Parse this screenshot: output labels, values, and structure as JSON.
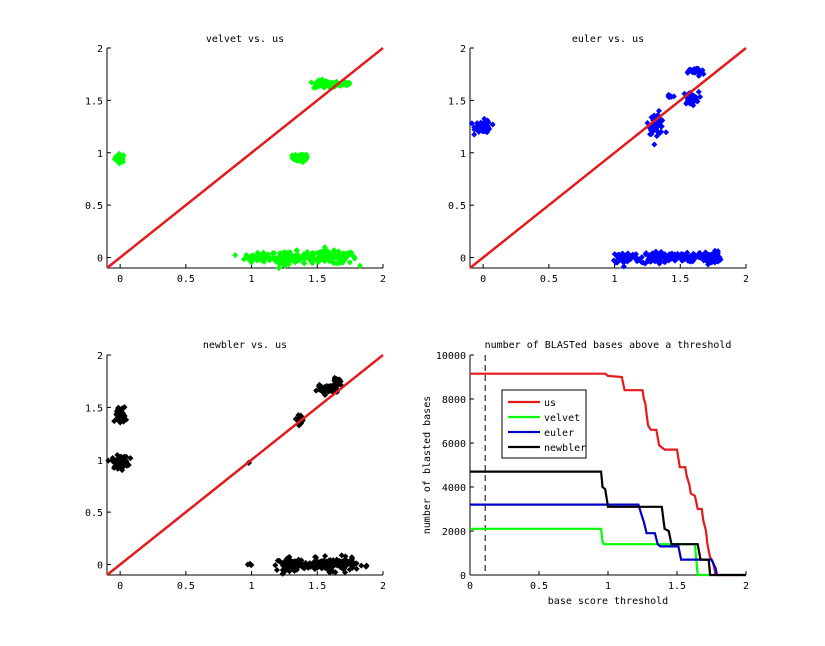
{
  "chart_data": [
    {
      "type": "scatter",
      "title": "velvet vs. us",
      "xlabel": "",
      "ylabel": "",
      "xlim": [
        -0.1,
        2
      ],
      "ylim": [
        -0.1,
        2
      ],
      "xticks": [
        "0",
        "0.5",
        "1",
        "1.5",
        "2"
      ],
      "yticks": [
        "0",
        "0.5",
        "1",
        "1.5",
        "2"
      ],
      "marker_color": "#00ff00",
      "diagonal_color": "#e41a1c",
      "clusters": [
        {
          "x": 0.0,
          "y": 0.95,
          "sx": 0.02,
          "sy": 0.02,
          "n": 30
        },
        {
          "x": 1.37,
          "y": 0.95,
          "sx": 0.03,
          "sy": 0.02,
          "n": 40
        },
        {
          "x": 1.57,
          "y": 1.65,
          "sx": 0.05,
          "sy": 0.02,
          "n": 60
        },
        {
          "x": 1.72,
          "y": 1.66,
          "sx": 0.02,
          "sy": 0.01,
          "n": 15
        },
        {
          "x": 1.05,
          "y": 0.0,
          "sx": 0.05,
          "sy": 0.02,
          "n": 60
        },
        {
          "x": 1.28,
          "y": 0.0,
          "sx": 0.07,
          "sy": 0.03,
          "n": 90
        },
        {
          "x": 1.6,
          "y": 0.0,
          "sx": 0.1,
          "sy": 0.03,
          "n": 140
        }
      ]
    },
    {
      "type": "scatter",
      "title": "euler vs. us",
      "xlabel": "",
      "ylabel": "",
      "xlim": [
        -0.1,
        2
      ],
      "ylim": [
        -0.1,
        2
      ],
      "xticks": [
        "0",
        "0.5",
        "1",
        "1.5",
        "2"
      ],
      "yticks": [
        "0",
        "0.5",
        "1",
        "1.5",
        "2"
      ],
      "marker_color": "#0000ff",
      "diagonal_color": "#e41a1c",
      "clusters": [
        {
          "x": 0.0,
          "y": 1.25,
          "sx": 0.03,
          "sy": 0.03,
          "n": 50
        },
        {
          "x": 1.32,
          "y": 1.28,
          "sx": 0.03,
          "sy": 0.05,
          "n": 50
        },
        {
          "x": 1.42,
          "y": 1.53,
          "sx": 0.01,
          "sy": 0.01,
          "n": 8
        },
        {
          "x": 1.58,
          "y": 1.52,
          "sx": 0.03,
          "sy": 0.03,
          "n": 40
        },
        {
          "x": 1.62,
          "y": 1.77,
          "sx": 0.03,
          "sy": 0.02,
          "n": 30
        },
        {
          "x": 1.08,
          "y": 0.0,
          "sx": 0.05,
          "sy": 0.03,
          "n": 60
        },
        {
          "x": 1.32,
          "y": 0.0,
          "sx": 0.06,
          "sy": 0.03,
          "n": 80
        },
        {
          "x": 1.52,
          "y": 0.0,
          "sx": 0.05,
          "sy": 0.02,
          "n": 50
        },
        {
          "x": 1.73,
          "y": 0.0,
          "sx": 0.04,
          "sy": 0.03,
          "n": 70
        }
      ]
    },
    {
      "type": "scatter",
      "title": "newbler vs. us",
      "xlabel": "",
      "ylabel": "",
      "xlim": [
        -0.1,
        2
      ],
      "ylim": [
        -0.1,
        2
      ],
      "xticks": [
        "0",
        "0.5",
        "1",
        "1.5",
        "2"
      ],
      "yticks": [
        "0",
        "0.5",
        "1",
        "1.5",
        "2"
      ],
      "marker_color": "#000000",
      "diagonal_color": "#e41a1c",
      "clusters": [
        {
          "x": 0.0,
          "y": 1.42,
          "sx": 0.02,
          "sy": 0.04,
          "n": 50
        },
        {
          "x": 0.0,
          "y": 0.98,
          "sx": 0.03,
          "sy": 0.03,
          "n": 60
        },
        {
          "x": 0.98,
          "y": 0.97,
          "sx": 0.003,
          "sy": 0.003,
          "n": 2
        },
        {
          "x": 1.37,
          "y": 1.39,
          "sx": 0.02,
          "sy": 0.02,
          "n": 25
        },
        {
          "x": 1.58,
          "y": 1.67,
          "sx": 0.04,
          "sy": 0.02,
          "n": 40
        },
        {
          "x": 1.66,
          "y": 1.74,
          "sx": 0.02,
          "sy": 0.02,
          "n": 25
        },
        {
          "x": 0.99,
          "y": 0.0,
          "sx": 0.005,
          "sy": 0.005,
          "n": 4
        },
        {
          "x": 1.3,
          "y": 0.0,
          "sx": 0.05,
          "sy": 0.03,
          "n": 80
        },
        {
          "x": 1.6,
          "y": 0.0,
          "sx": 0.1,
          "sy": 0.03,
          "n": 150
        }
      ]
    },
    {
      "type": "line",
      "title": "number of BLASTed bases above a threshold",
      "xlabel": "base score threshold",
      "ylabel": "number of blasted bases",
      "xlim": [
        0,
        2
      ],
      "ylim": [
        0,
        10000
      ],
      "xticks": [
        "0",
        "0.5",
        "1",
        "1.5",
        "2"
      ],
      "yticks": [
        "0",
        "2000",
        "4000",
        "6000",
        "8000",
        "10000"
      ],
      "threshold_line_x": 0.11,
      "legend": {
        "placement": "upper-left",
        "entries": [
          "us",
          "velvet",
          "euler",
          "newbler"
        ]
      },
      "series": [
        {
          "name": "us",
          "color": "#e41a1c",
          "points": [
            [
              0,
              9150
            ],
            [
              0.98,
              9150
            ],
            [
              1.0,
              9050
            ],
            [
              1.1,
              9000
            ],
            [
              1.12,
              8400
            ],
            [
              1.25,
              8400
            ],
            [
              1.26,
              8000
            ],
            [
              1.27,
              7800
            ],
            [
              1.29,
              6800
            ],
            [
              1.31,
              6600
            ],
            [
              1.35,
              6600
            ],
            [
              1.37,
              5900
            ],
            [
              1.41,
              5700
            ],
            [
              1.5,
              5700
            ],
            [
              1.52,
              4900
            ],
            [
              1.56,
              4900
            ],
            [
              1.57,
              4500
            ],
            [
              1.59,
              4100
            ],
            [
              1.6,
              3700
            ],
            [
              1.63,
              3600
            ],
            [
              1.65,
              3000
            ],
            [
              1.68,
              3000
            ],
            [
              1.69,
              2500
            ],
            [
              1.71,
              2000
            ],
            [
              1.72,
              1400
            ],
            [
              1.74,
              800
            ],
            [
              1.76,
              600
            ],
            [
              1.77,
              300
            ],
            [
              1.78,
              0
            ],
            [
              2,
              0
            ]
          ]
        },
        {
          "name": "velvet",
          "color": "#00ff00",
          "points": [
            [
              0,
              2100
            ],
            [
              0.95,
              2100
            ],
            [
              0.96,
              1500
            ],
            [
              0.97,
              1400
            ],
            [
              1.62,
              1400
            ],
            [
              1.63,
              1400
            ],
            [
              1.65,
              0
            ],
            [
              1.74,
              0
            ]
          ]
        },
        {
          "name": "euler",
          "color": "#0000c8",
          "points": [
            [
              0,
              3200
            ],
            [
              1.22,
              3200
            ],
            [
              1.24,
              2800
            ],
            [
              1.26,
              2400
            ],
            [
              1.28,
              1900
            ],
            [
              1.34,
              1900
            ],
            [
              1.36,
              1400
            ],
            [
              1.38,
              1300
            ],
            [
              1.51,
              1300
            ],
            [
              1.53,
              700
            ],
            [
              1.75,
              700
            ],
            [
              1.78,
              300
            ],
            [
              1.79,
              0
            ]
          ]
        },
        {
          "name": "newbler",
          "color": "#000000",
          "points": [
            [
              0,
              4700
            ],
            [
              0.95,
              4700
            ],
            [
              0.96,
              4000
            ],
            [
              0.98,
              3900
            ],
            [
              1.0,
              3100
            ],
            [
              1.39,
              3100
            ],
            [
              1.41,
              2100
            ],
            [
              1.44,
              2000
            ],
            [
              1.46,
              1400
            ],
            [
              1.65,
              1400
            ],
            [
              1.67,
              700
            ],
            [
              1.73,
              700
            ],
            [
              1.74,
              0
            ],
            [
              2,
              0
            ]
          ]
        }
      ]
    }
  ]
}
